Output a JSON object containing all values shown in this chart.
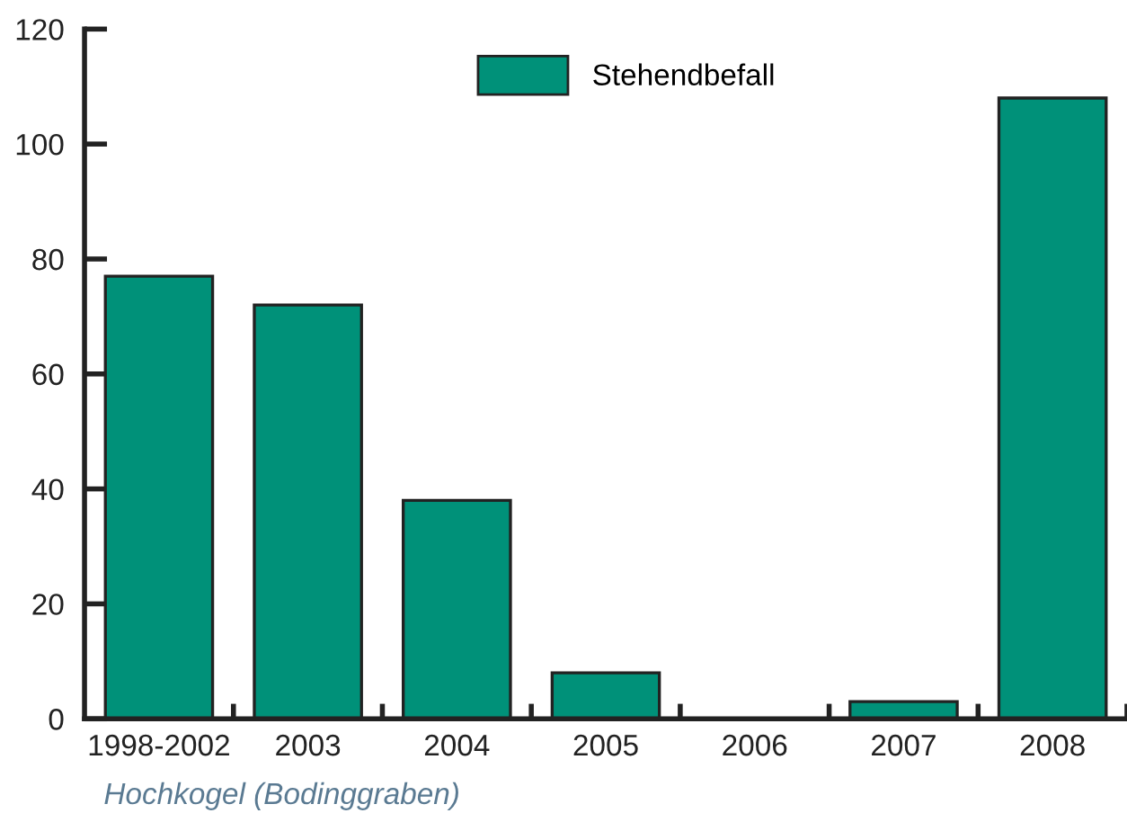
{
  "chart_data": {
    "type": "bar",
    "categories": [
      "1998-2002",
      "2003",
      "2004",
      "2005",
      "2006",
      "2007",
      "2008"
    ],
    "series": [
      {
        "name": "Stehendbefall",
        "color": "#009179",
        "values": [
          77,
          72,
          38,
          8,
          0,
          3,
          108
        ]
      }
    ],
    "ylim": [
      0,
      120
    ],
    "yticks": [
      0,
      20,
      40,
      60,
      80,
      100,
      120
    ],
    "legend": "top",
    "grid": false,
    "annotations": [
      "Hochkogel (Bodinggraben)"
    ]
  }
}
